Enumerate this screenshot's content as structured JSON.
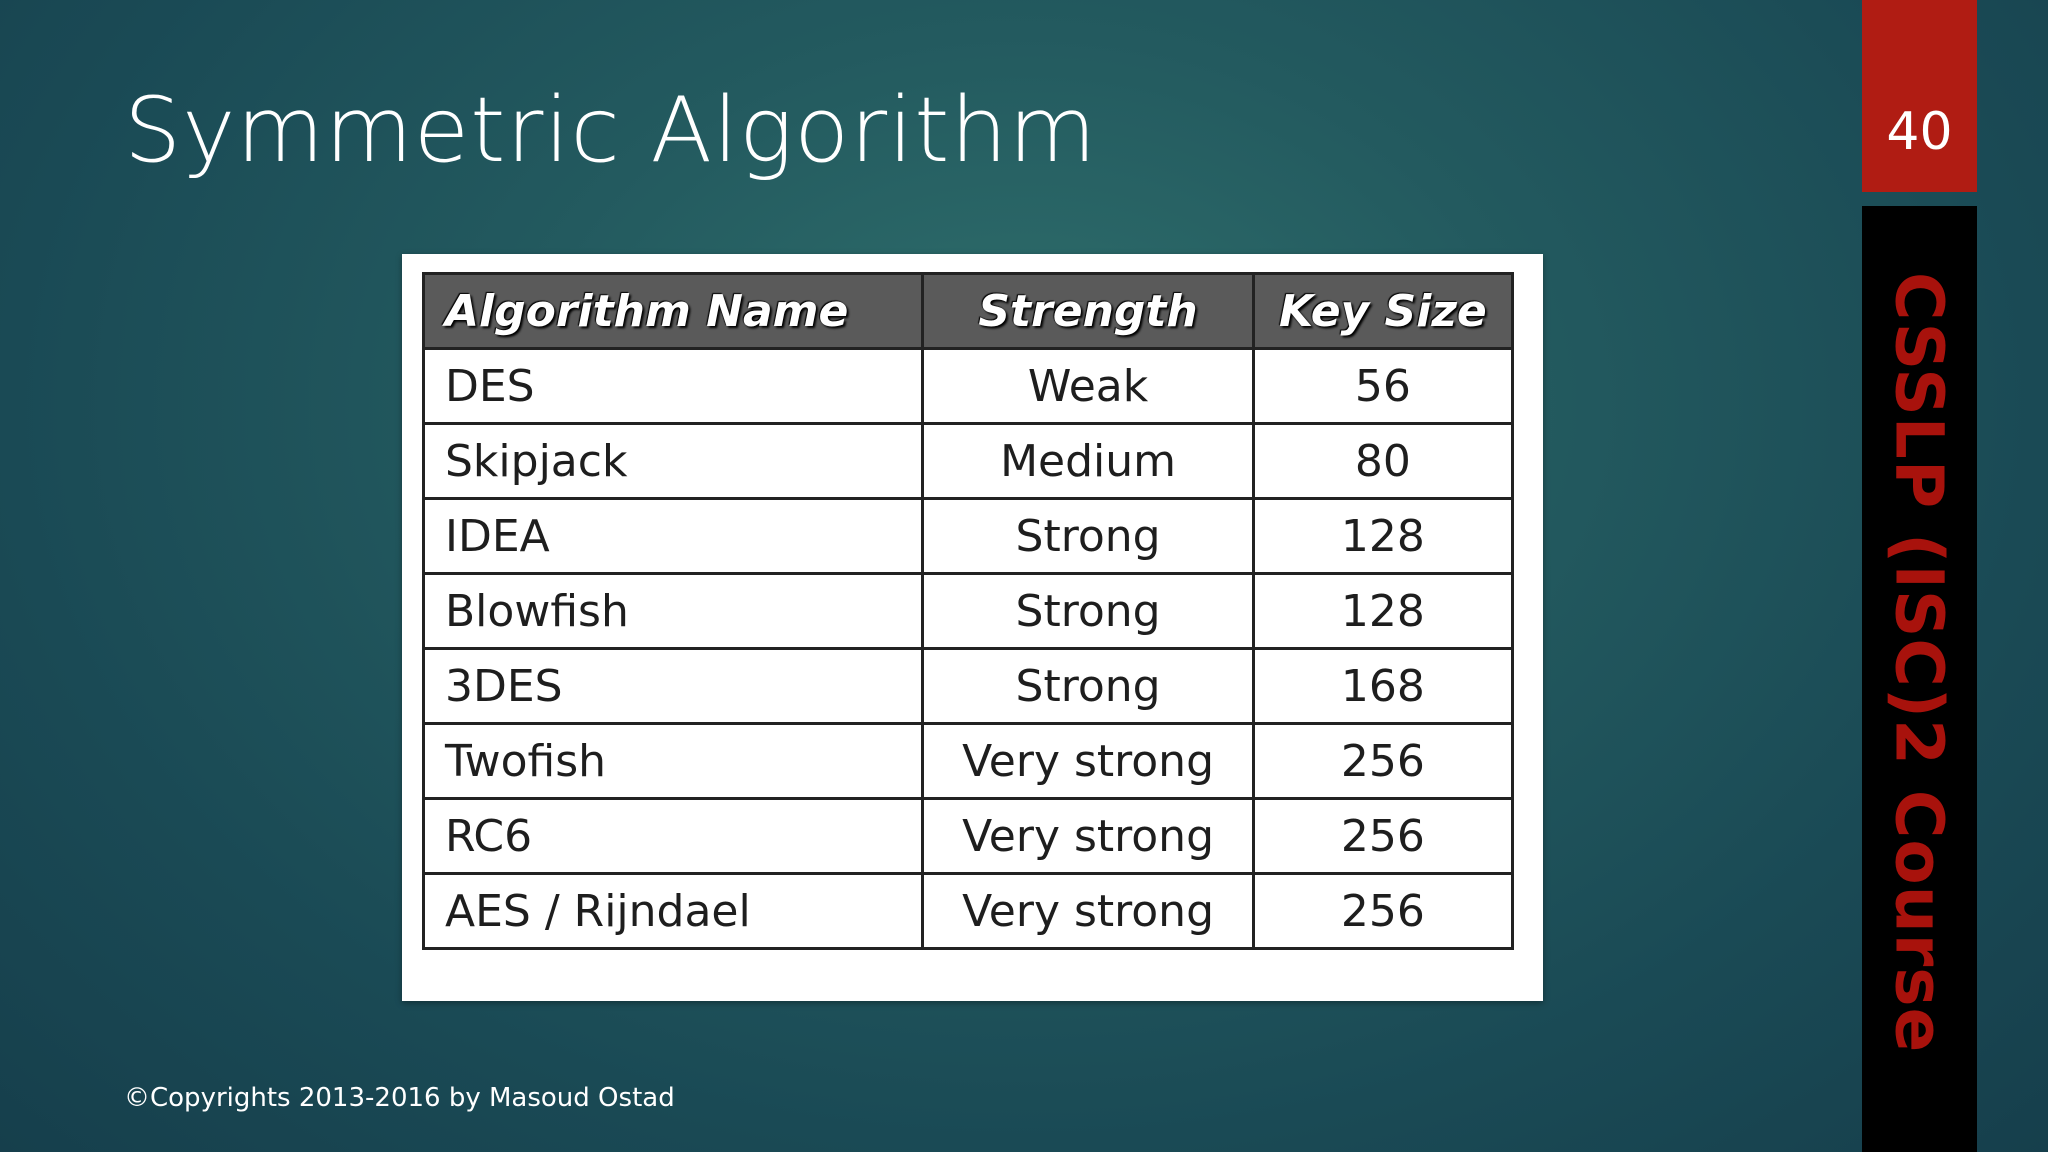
{
  "slide": {
    "title": "Symmetric Algorithm",
    "page_number": "40",
    "side_label": "CSSLP (ISC)2 Course",
    "copyright": "©Copyrights 2013-2016 by Masoud Ostad"
  },
  "table": {
    "headers": [
      "Algorithm Name",
      "Strength",
      "Key Size"
    ],
    "rows": [
      [
        "DES",
        "Weak",
        "56"
      ],
      [
        "Skipjack",
        "Medium",
        "80"
      ],
      [
        "IDEA",
        "Strong",
        "128"
      ],
      [
        "Blowfish",
        "Strong",
        "128"
      ],
      [
        "3DES",
        "Strong",
        "168"
      ],
      [
        "Twofish",
        "Very strong",
        "256"
      ],
      [
        "RC6",
        "Very strong",
        "256"
      ],
      [
        "AES / Rijndael",
        "Very strong",
        "256"
      ]
    ]
  },
  "colors": {
    "page_number_bg": "#b01c13",
    "side_band_bg": "#000000",
    "side_label_text": "#a8120c",
    "table_header_bg": "#5a5a5a",
    "background": "#235a5f"
  }
}
